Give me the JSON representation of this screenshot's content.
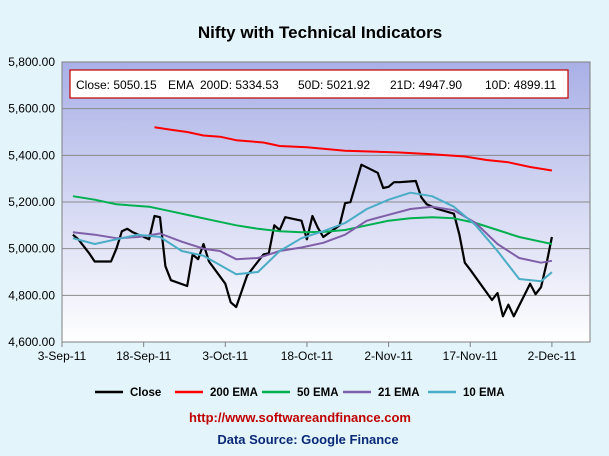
{
  "chart_data": {
    "type": "line",
    "title": "Nifty with Technical Indicators",
    "ylim": [
      4600,
      5800
    ],
    "yticks": [
      4600,
      4800,
      5000,
      5200,
      5400,
      5600,
      5800
    ],
    "ytick_labels": [
      "4,600.00",
      "4,800.00",
      "5,000.00",
      "5,200.00",
      "5,400.00",
      "5,600.00",
      "5,800.00"
    ],
    "xlim": [
      "2011-09-03",
      "2011-12-09"
    ],
    "xticks": [
      "2011-09-03",
      "2011-09-18",
      "2011-10-03",
      "2011-10-18",
      "2011-11-02",
      "2011-11-17",
      "2011-12-02"
    ],
    "xtick_labels": [
      "3-Sep-11",
      "18-Sep-11",
      "3-Oct-11",
      "18-Oct-11",
      "2-Nov-11",
      "17-Nov-11",
      "2-Dec-11"
    ],
    "grid": "horizontal",
    "legend_position": "bottom",
    "info_box": {
      "close_label": "Close: 5050.15",
      "ema_label": "EMA",
      "ema200_label": "200D: 5334.53",
      "ema50_label": "50D: 5021.92",
      "ema21_label": "21D: 4947.90",
      "ema10_label": "10D: 4899.11"
    },
    "series": [
      {
        "name": "Close",
        "color": "#000000",
        "points": [
          [
            "2011-09-05",
            5060
          ],
          [
            "2011-09-06",
            5040
          ],
          [
            "2011-09-08",
            4980
          ],
          [
            "2011-09-09",
            4945
          ],
          [
            "2011-09-12",
            4945
          ],
          [
            "2011-09-13",
            5000
          ],
          [
            "2011-09-14",
            5075
          ],
          [
            "2011-09-15",
            5085
          ],
          [
            "2011-09-16",
            5070
          ],
          [
            "2011-09-19",
            5040
          ],
          [
            "2011-09-20",
            5140
          ],
          [
            "2011-09-21",
            5135
          ],
          [
            "2011-09-22",
            4925
          ],
          [
            "2011-09-23",
            4865
          ],
          [
            "2011-09-26",
            4840
          ],
          [
            "2011-09-27",
            4975
          ],
          [
            "2011-09-28",
            4955
          ],
          [
            "2011-09-29",
            5020
          ],
          [
            "2011-09-30",
            4945
          ],
          [
            "2011-10-03",
            4850
          ],
          [
            "2011-10-04",
            4770
          ],
          [
            "2011-10-05",
            4750
          ],
          [
            "2011-10-07",
            4885
          ],
          [
            "2011-10-10",
            4975
          ],
          [
            "2011-10-11",
            4980
          ],
          [
            "2011-10-12",
            5100
          ],
          [
            "2011-10-13",
            5080
          ],
          [
            "2011-10-14",
            5135
          ],
          [
            "2011-10-17",
            5120
          ],
          [
            "2011-10-18",
            5040
          ],
          [
            "2011-10-19",
            5140
          ],
          [
            "2011-10-20",
            5090
          ],
          [
            "2011-10-21",
            5050
          ],
          [
            "2011-10-24",
            5100
          ],
          [
            "2011-10-25",
            5195
          ],
          [
            "2011-10-26",
            5200
          ],
          [
            "2011-10-28",
            5360
          ],
          [
            "2011-10-31",
            5325
          ],
          [
            "2011-11-01",
            5260
          ],
          [
            "2011-11-02",
            5265
          ],
          [
            "2011-11-03",
            5285
          ],
          [
            "2011-11-04",
            5285
          ],
          [
            "2011-11-07",
            5290
          ],
          [
            "2011-11-08",
            5220
          ],
          [
            "2011-11-09",
            5190
          ],
          [
            "2011-11-11",
            5170
          ],
          [
            "2011-11-14",
            5150
          ],
          [
            "2011-11-15",
            5060
          ],
          [
            "2011-11-16",
            4940
          ],
          [
            "2011-11-17",
            4910
          ],
          [
            "2011-11-21",
            4780
          ],
          [
            "2011-11-22",
            4810
          ],
          [
            "2011-11-23",
            4710
          ],
          [
            "2011-11-24",
            4760
          ],
          [
            "2011-11-25",
            4710
          ],
          [
            "2011-11-28",
            4850
          ],
          [
            "2011-11-29",
            4805
          ],
          [
            "2011-11-30",
            4835
          ],
          [
            "2011-12-01",
            4935
          ],
          [
            "2011-12-02",
            5050
          ]
        ]
      },
      {
        "name": "200 EMA",
        "color": "#ff0000",
        "points": [
          [
            "2011-09-20",
            5520
          ],
          [
            "2011-09-23",
            5510
          ],
          [
            "2011-09-26",
            5500
          ],
          [
            "2011-09-29",
            5485
          ],
          [
            "2011-10-02",
            5480
          ],
          [
            "2011-10-05",
            5465
          ],
          [
            "2011-10-10",
            5455
          ],
          [
            "2011-10-13",
            5440
          ],
          [
            "2011-10-18",
            5435
          ],
          [
            "2011-10-21",
            5428
          ],
          [
            "2011-10-25",
            5420
          ],
          [
            "2011-10-31",
            5415
          ],
          [
            "2011-11-04",
            5412
          ],
          [
            "2011-11-10",
            5405
          ],
          [
            "2011-11-16",
            5395
          ],
          [
            "2011-11-20",
            5380
          ],
          [
            "2011-11-24",
            5370
          ],
          [
            "2011-11-28",
            5350
          ],
          [
            "2011-12-02",
            5335
          ]
        ]
      },
      {
        "name": "50 EMA",
        "color": "#00b050",
        "points": [
          [
            "2011-09-05",
            5225
          ],
          [
            "2011-09-09",
            5210
          ],
          [
            "2011-09-13",
            5190
          ],
          [
            "2011-09-19",
            5180
          ],
          [
            "2011-09-23",
            5160
          ],
          [
            "2011-09-27",
            5140
          ],
          [
            "2011-10-01",
            5120
          ],
          [
            "2011-10-05",
            5100
          ],
          [
            "2011-10-09",
            5085
          ],
          [
            "2011-10-13",
            5075
          ],
          [
            "2011-10-17",
            5070
          ],
          [
            "2011-10-21",
            5072
          ],
          [
            "2011-10-25",
            5080
          ],
          [
            "2011-10-29",
            5100
          ],
          [
            "2011-11-02",
            5120
          ],
          [
            "2011-11-06",
            5130
          ],
          [
            "2011-11-10",
            5135
          ],
          [
            "2011-11-14",
            5130
          ],
          [
            "2011-11-18",
            5110
          ],
          [
            "2011-11-22",
            5080
          ],
          [
            "2011-11-26",
            5050
          ],
          [
            "2011-11-30",
            5030
          ],
          [
            "2011-12-02",
            5020
          ]
        ]
      },
      {
        "name": "21 EMA",
        "color": "#7f5fa8",
        "points": [
          [
            "2011-09-05",
            5070
          ],
          [
            "2011-09-09",
            5060
          ],
          [
            "2011-09-13",
            5045
          ],
          [
            "2011-09-17",
            5050
          ],
          [
            "2011-09-21",
            5065
          ],
          [
            "2011-09-25",
            5030
          ],
          [
            "2011-09-29",
            5000
          ],
          [
            "2011-10-02",
            4990
          ],
          [
            "2011-10-05",
            4955
          ],
          [
            "2011-10-09",
            4960
          ],
          [
            "2011-10-13",
            4990
          ],
          [
            "2011-10-17",
            5005
          ],
          [
            "2011-10-21",
            5025
          ],
          [
            "2011-10-25",
            5060
          ],
          [
            "2011-10-29",
            5120
          ],
          [
            "2011-11-02",
            5145
          ],
          [
            "2011-11-06",
            5170
          ],
          [
            "2011-11-10",
            5180
          ],
          [
            "2011-11-14",
            5165
          ],
          [
            "2011-11-18",
            5110
          ],
          [
            "2011-11-22",
            5020
          ],
          [
            "2011-11-26",
            4960
          ],
          [
            "2011-11-30",
            4940
          ],
          [
            "2011-12-02",
            4948
          ]
        ]
      },
      {
        "name": "10 EMA",
        "color": "#4bacc6",
        "points": [
          [
            "2011-09-05",
            5045
          ],
          [
            "2011-09-09",
            5020
          ],
          [
            "2011-09-13",
            5040
          ],
          [
            "2011-09-17",
            5060
          ],
          [
            "2011-09-21",
            5050
          ],
          [
            "2011-09-25",
            4990
          ],
          [
            "2011-09-29",
            4970
          ],
          [
            "2011-10-02",
            4930
          ],
          [
            "2011-10-05",
            4890
          ],
          [
            "2011-10-09",
            4900
          ],
          [
            "2011-10-13",
            4990
          ],
          [
            "2011-10-17",
            5045
          ],
          [
            "2011-10-21",
            5075
          ],
          [
            "2011-10-25",
            5110
          ],
          [
            "2011-10-29",
            5170
          ],
          [
            "2011-11-02",
            5210
          ],
          [
            "2011-11-06",
            5240
          ],
          [
            "2011-11-10",
            5225
          ],
          [
            "2011-11-14",
            5180
          ],
          [
            "2011-11-18",
            5100
          ],
          [
            "2011-11-22",
            4990
          ],
          [
            "2011-11-26",
            4870
          ],
          [
            "2011-11-30",
            4860
          ],
          [
            "2011-12-02",
            4899
          ]
        ]
      }
    ]
  },
  "footer": {
    "url": "http://www.softwareandfinance.com",
    "source": "Data Source: Google Finance"
  }
}
